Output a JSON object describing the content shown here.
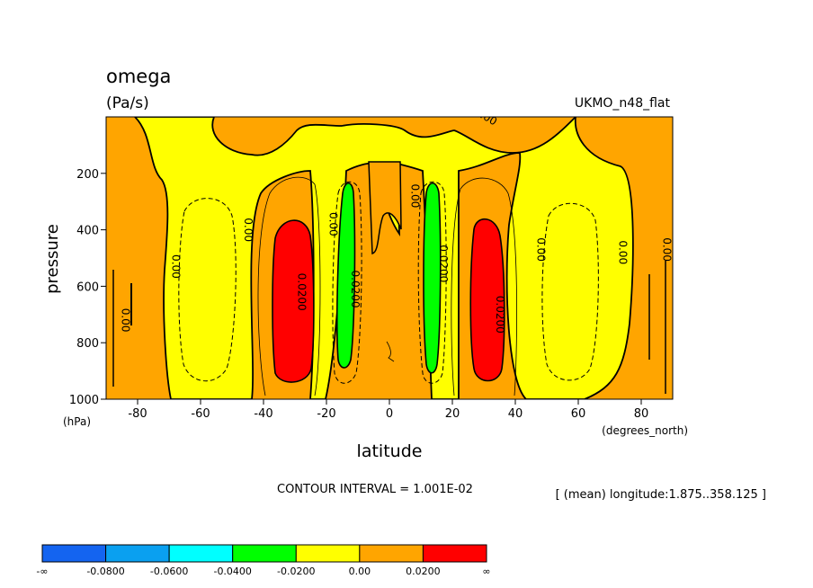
{
  "chart_data": {
    "type": "contour",
    "title": "omega",
    "units": "(Pa/s)",
    "dataset": "UKMO_n48_flat",
    "xlabel": "latitude",
    "x_units": "(degrees_north)",
    "ylabel": "pressure",
    "y_units": "(hPa)",
    "xlim": [
      -90,
      90
    ],
    "ylim": [
      1000,
      0
    ],
    "x_ticks": [
      -80,
      -60,
      -40,
      -20,
      0,
      20,
      40,
      60,
      80
    ],
    "y_ticks": [
      200,
      400,
      600,
      800,
      1000
    ],
    "contour_interval_text": "CONTOUR INTERVAL = 1.001E-02",
    "mean_text": "[ (mean) longitude:1.875..358.125 ]",
    "colorbar": {
      "labels": [
        "-∞",
        "-0.0800",
        "-0.0600",
        "-0.0400",
        "-0.0200",
        "0.00",
        "0.0200",
        "∞"
      ],
      "colors": [
        "#1464f0",
        "#0aa0f0",
        "#00ffff",
        "#00ff00",
        "#ffff00",
        "#ffa500",
        "#ff0000"
      ]
    },
    "contour_labels": [
      {
        "lat": -85,
        "p": 720,
        "text": "0.00"
      },
      {
        "lat": -69,
        "p": 530,
        "text": "0.00"
      },
      {
        "lat": -46,
        "p": 400,
        "text": "0.00"
      },
      {
        "lat": -29,
        "p": 620,
        "text": "0.0200"
      },
      {
        "lat": -19,
        "p": 380,
        "text": "0.00"
      },
      {
        "lat": -12,
        "p": 610,
        "text": "0.0200"
      },
      {
        "lat": 7,
        "p": 280,
        "text": "0.00"
      },
      {
        "lat": 16,
        "p": 520,
        "text": "0.0200"
      },
      {
        "lat": 34,
        "p": 700,
        "text": "0.0200"
      },
      {
        "lat": 47,
        "p": 470,
        "text": "0.00"
      },
      {
        "lat": 73,
        "p": 480,
        "text": "0.00"
      },
      {
        "lat": 87,
        "p": 470,
        "text": "0.00"
      },
      {
        "lat": 30,
        "p": 10,
        "text": "0.00"
      }
    ]
  }
}
